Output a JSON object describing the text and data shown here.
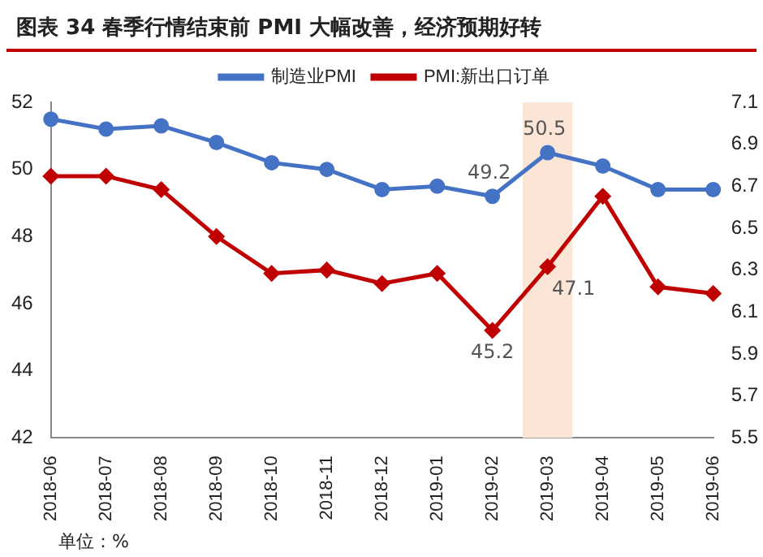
{
  "chart_data": {
    "type": "line",
    "title": "图表 34  春季行情结束前 PMI 大幅改善，经济预期好转",
    "categories": [
      "2018-06",
      "2018-07",
      "2018-08",
      "2018-09",
      "2018-10",
      "2018-11",
      "2018-12",
      "2019-01",
      "2019-02",
      "2019-03",
      "2019-04",
      "2019-05",
      "2019-06"
    ],
    "series": [
      {
        "name": "制造业PMI",
        "color": "#4472c4",
        "marker": "circle",
        "values": [
          51.5,
          51.2,
          51.3,
          50.8,
          50.2,
          50.0,
          49.4,
          49.5,
          49.2,
          50.5,
          50.1,
          49.4,
          49.4
        ]
      },
      {
        "name": "PMI:新出口订单",
        "color": "#c00000",
        "marker": "diamond",
        "values": [
          49.8,
          49.8,
          49.4,
          48.0,
          46.9,
          47.0,
          46.6,
          46.9,
          45.2,
          47.1,
          49.2,
          46.5,
          46.3
        ]
      }
    ],
    "ylim": [
      42,
      52
    ],
    "yticks": [
      42,
      44,
      46,
      48,
      50,
      52
    ],
    "y2lim": [
      5.5,
      7.1
    ],
    "y2ticks": [
      5.5,
      5.7,
      5.9,
      6.1,
      6.3,
      6.5,
      6.7,
      6.9,
      7.1
    ],
    "bands": [
      {
        "axis": "x",
        "from": "2019-03",
        "to": "2019-03",
        "color": "#fbe5d6"
      }
    ],
    "annotations": [
      {
        "text": "49.2",
        "x": "2019-02",
        "y": 49.2
      },
      {
        "text": "50.5",
        "x": "2019-03",
        "y": 50.5
      },
      {
        "text": "47.1",
        "x": "2019-03",
        "y": 47.1
      },
      {
        "text": "45.2",
        "x": "2019-02",
        "y": 45.2
      },
      "单位：%"
    ],
    "legend": "top",
    "grid": false
  }
}
